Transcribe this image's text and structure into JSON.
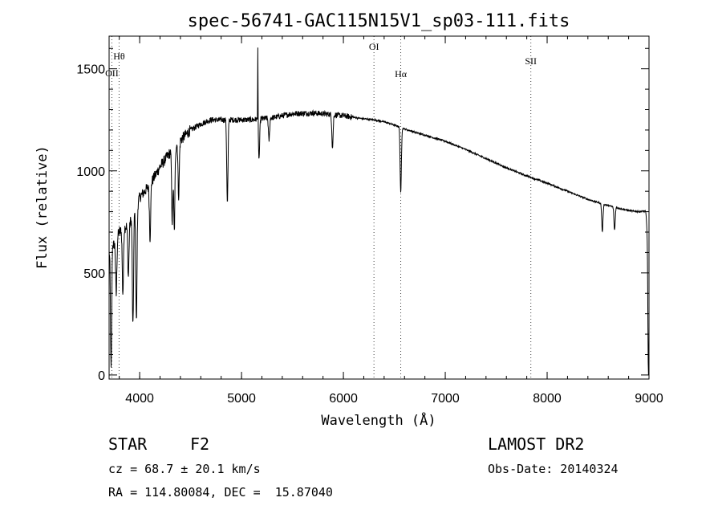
{
  "chart_data": {
    "type": "line",
    "title": "spec-56741-GAC115N15V1_sp03-111.fits",
    "xlabel": "Wavelength (Å)",
    "ylabel": "Flux (relative)",
    "xlim": [
      3700,
      9000
    ],
    "ylim": [
      -20,
      1660
    ],
    "xticks": [
      4000,
      5000,
      6000,
      7000,
      8000,
      9000
    ],
    "yticks": [
      0,
      500,
      1000,
      1500
    ],
    "grid": false,
    "lines": [
      {
        "label": "Hθ",
        "x": 3798
      },
      {
        "label": "OII",
        "x": 3727
      },
      {
        "label": "OI",
        "x": 6300
      },
      {
        "label": "Hα",
        "x": 6563
      },
      {
        "label": "SII",
        "x": 7840
      }
    ],
    "series": [
      {
        "continuum": {
          "x": [
            3700,
            3720,
            3750,
            3800,
            3850,
            3900,
            3950,
            4000,
            4050,
            4100,
            4200,
            4300,
            4400,
            4500,
            4600,
            4700,
            4800,
            4900,
            5000,
            5100,
            5200,
            5300,
            5400,
            5500,
            5600,
            5700,
            5800,
            5900,
            6000,
            6100,
            6200,
            6300,
            6400,
            6500,
            6600,
            6700,
            6800,
            7000,
            7200,
            7400,
            7600,
            7800,
            8000,
            8200,
            8400,
            8600,
            8800,
            8900,
            9000
          ],
          "y": [
            600,
            610,
            640,
            700,
            720,
            740,
            800,
            870,
            900,
            930,
            1020,
            1090,
            1150,
            1200,
            1230,
            1250,
            1250,
            1250,
            1250,
            1250,
            1255,
            1260,
            1270,
            1280,
            1282,
            1283,
            1280,
            1275,
            1270,
            1262,
            1255,
            1250,
            1240,
            1225,
            1205,
            1190,
            1175,
            1145,
            1105,
            1060,
            1015,
            975,
            940,
            900,
            860,
            830,
            805,
            800,
            805
          ]
        },
        "features": [
          {
            "x": 3720,
            "y": 0
          },
          {
            "x": 3728,
            "y": 680
          },
          {
            "x": 3770,
            "y": 390
          },
          {
            "x": 3835,
            "y": 400
          },
          {
            "x": 3889,
            "y": 480
          },
          {
            "x": 3934,
            "y": 230
          },
          {
            "x": 3968,
            "y": 260
          },
          {
            "x": 4102,
            "y": 670
          },
          {
            "x": 4320,
            "y": 750
          },
          {
            "x": 4340,
            "y": 700
          },
          {
            "x": 4383,
            "y": 880
          },
          {
            "x": 4861,
            "y": 840
          },
          {
            "x": 5160,
            "y": 1630
          },
          {
            "x": 5172,
            "y": 1060
          },
          {
            "x": 5270,
            "y": 1150
          },
          {
            "x": 5893,
            "y": 1110
          },
          {
            "x": 6563,
            "y": 890
          },
          {
            "x": 8542,
            "y": 700
          },
          {
            "x": 8662,
            "y": 710
          },
          {
            "x": 8980,
            "y": 740
          },
          {
            "x": 8995,
            "y": 0
          }
        ]
      }
    ]
  },
  "info": {
    "class": "STAR",
    "subclass": "F2",
    "survey": "LAMOST DR2",
    "cz": "cz = 68.7 ± 20.1 km/s",
    "obs_date": "Obs-Date: 20140324",
    "coords": "RA = 114.80084, DEC =  15.87040"
  }
}
